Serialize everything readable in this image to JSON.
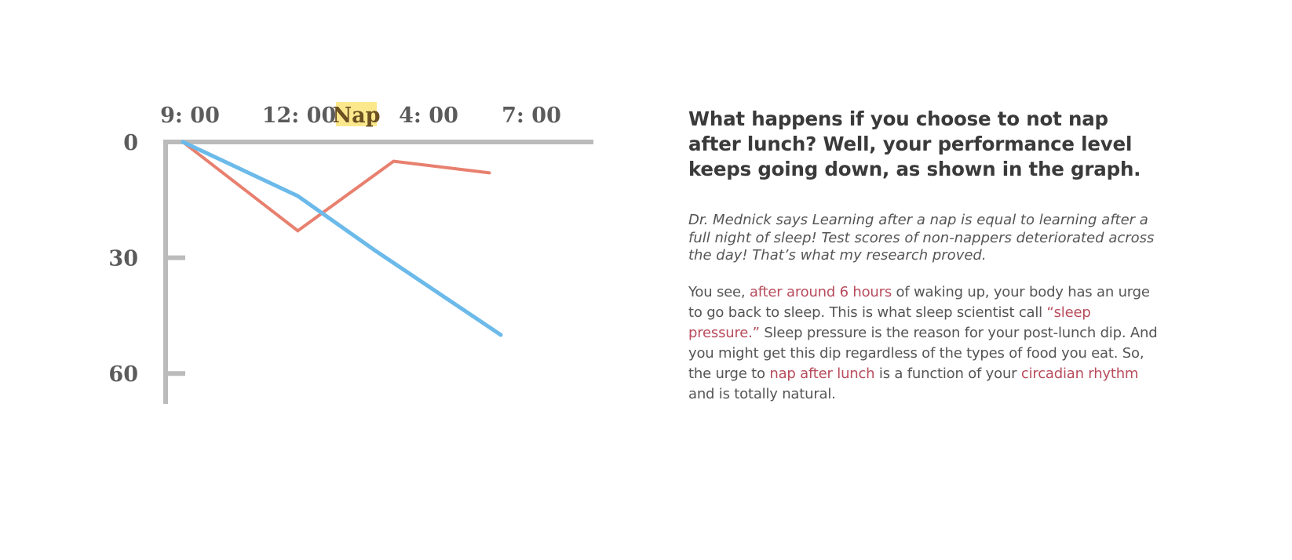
{
  "chart_data": {
    "type": "line",
    "x_ticks": [
      "9: 00",
      "12: 00",
      "4: 00",
      "7: 00"
    ],
    "x_annotation": "Nap",
    "y_ticks": [
      0,
      30,
      60
    ],
    "y_range": [
      0,
      70
    ],
    "y_inverted": true,
    "x_axis_position": "top",
    "series": [
      {
        "color": "#e8806f",
        "points": [
          [
            9,
            0
          ],
          [
            12,
            23
          ],
          [
            14.5,
            5
          ],
          [
            17,
            8
          ]
        ]
      },
      {
        "color": "#6bbaea",
        "points": [
          [
            9,
            0
          ],
          [
            12,
            14
          ],
          [
            14,
            28
          ],
          [
            17.3,
            50
          ]
        ]
      }
    ],
    "colors": {
      "axis": "#bbbbbb",
      "tick_text": "#5b5b5b",
      "nap_highlight": "#fbe88c",
      "nap_text": "#6b5023"
    }
  },
  "article": {
    "heading": "What happens if you choose to not nap after lunch? Well, your performance level keeps going down, as shown in the graph.",
    "quote": "Dr. Mednick says Learning after a nap is equal to learning after a full night of sleep! Test scores of non-nappers deteriorated across the day! That’s what my research proved.",
    "body": {
      "p1": "You see, ",
      "hl1": "after around 6 hours",
      "p2": " of waking up, your body has an urge to go back to sleep. This is what sleep scientist call ",
      "hl2": "“sleep pressure.”",
      "p3": " Sleep pressure is the reason for your post-lunch dip. And you might get this dip regardless of the types of food you eat. So, the urge to ",
      "hl3": "nap after lunch",
      "p4": " is a function of your ",
      "hl4": "circadian rhythm",
      "p5": " and is totally natural."
    },
    "highlight_color": "#b84c5c"
  }
}
